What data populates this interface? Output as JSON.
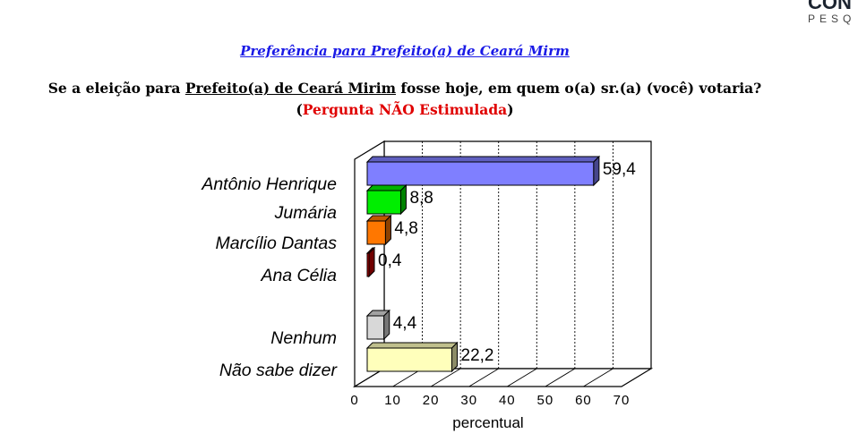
{
  "logo": {
    "line1": "CON",
    "line2": "PESQ"
  },
  "title": "Preferência para Prefeito(a) de Ceará Mirm",
  "question": {
    "before": "Se a eleição para ",
    "underlined": "Prefeito(a) de Ceará Mirim",
    "after": " fosse hoje, em quem o(a) sr.(a) (você) votaria?"
  },
  "note": {
    "open": "(",
    "text": "Pergunta NÃO Estimulada",
    "close": ")"
  },
  "chart_data": {
    "type": "bar",
    "orientation": "horizontal",
    "3d": true,
    "categories": [
      "Antônio Henrique",
      "Jumária",
      "Marcílio Dantas",
      "Ana Célia",
      "Nenhum",
      "Não sabe dizer"
    ],
    "values": [
      59.4,
      8.8,
      4.8,
      0.4,
      4.4,
      22.2
    ],
    "value_labels": [
      "59,4",
      "8,8",
      "4,8",
      "0,4",
      "4,4",
      "22,2"
    ],
    "colors": [
      "#7f7fff",
      "#00ee00",
      "#ff7700",
      "#cc0000",
      "#d8d8d8",
      "#ffffbb"
    ],
    "xlabel": "percentual",
    "xticks": [
      "0",
      "10",
      "20",
      "30",
      "40",
      "50",
      "60",
      "70"
    ],
    "xlim": [
      0,
      70
    ],
    "grid": true
  }
}
